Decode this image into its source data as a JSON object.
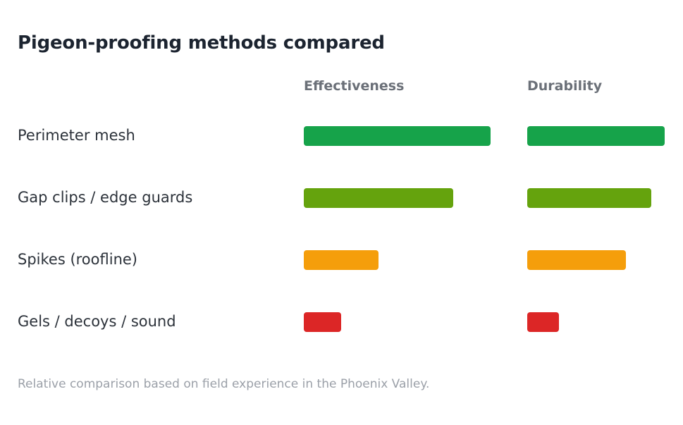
{
  "title": "Pigeon-proofing methods compared",
  "note": "Relative comparison based on field experience in the Phoenix Valley.",
  "chart_data": {
    "type": "bar",
    "title": "Pigeon-proofing methods compared",
    "categories": [
      "Perimeter mesh",
      "Gap clips / edge guards",
      "Spikes (roofline)",
      "Gels / decoys / sound"
    ],
    "series": [
      {
        "name": "Effectiveness",
        "values": [
          100,
          80,
          40,
          20
        ]
      },
      {
        "name": "Durability",
        "values": [
          100,
          90,
          72,
          23
        ]
      }
    ],
    "ylim": [
      0,
      100
    ],
    "bar_colors": [
      "#16a34a",
      "#65a30d",
      "#f59e0b",
      "#dc2626"
    ],
    "grid": false,
    "legend": "none"
  }
}
